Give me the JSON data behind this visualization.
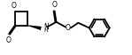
{
  "bg_color": "#ffffff",
  "line_color": "#000000",
  "lw": 1.3,
  "figsize": [
    1.49,
    0.62
  ],
  "dpi": 100,
  "xlim": [
    0,
    149
  ],
  "ylim": [
    0,
    62
  ]
}
